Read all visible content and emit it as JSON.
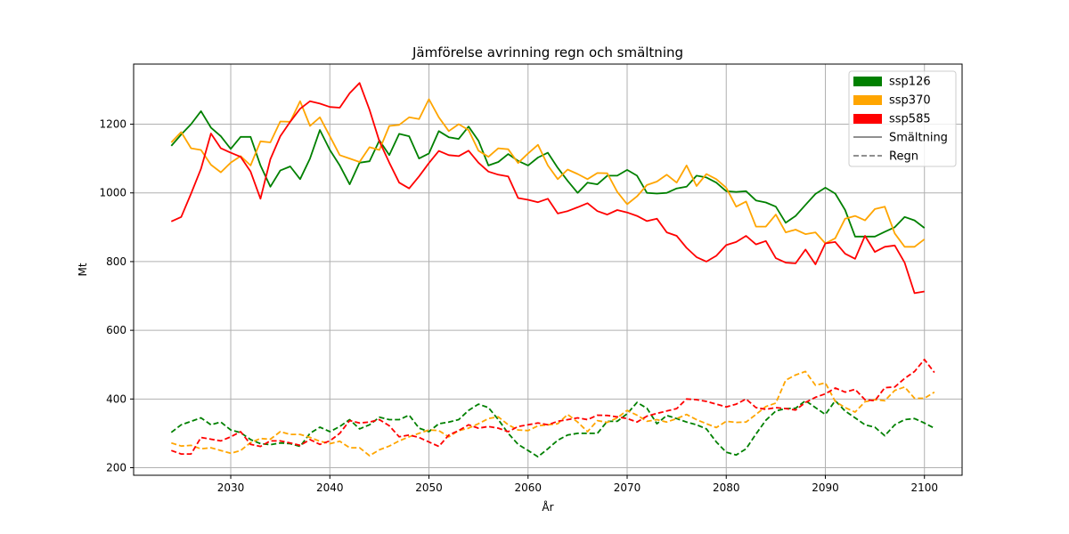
{
  "chart_data": {
    "type": "line",
    "title": "Jämförelse avrinning regn och smältning",
    "xlabel": "År",
    "ylabel": "Mt",
    "xlim": [
      2020.2,
      2103.8
    ],
    "ylim": [
      178,
      1375
    ],
    "xticks": [
      2030,
      2040,
      2050,
      2060,
      2070,
      2080,
      2090,
      2100
    ],
    "yticks": [
      200,
      400,
      600,
      800,
      1000,
      1200
    ],
    "grid": true,
    "legend_placement": "top-right",
    "legend": [
      {
        "label": "ssp126",
        "kind": "patch",
        "color": "#008000"
      },
      {
        "label": "ssp370",
        "kind": "patch",
        "color": "#FFA500"
      },
      {
        "label": "ssp585",
        "kind": "patch",
        "color": "#FF0000"
      },
      {
        "label": "Smältning",
        "kind": "solid",
        "color": "#808080"
      },
      {
        "label": "Regn",
        "kind": "dashed",
        "color": "#808080"
      }
    ],
    "x_start": 2024,
    "series": [
      {
        "scenario": "ssp126",
        "kind": "Smältning",
        "color": "#008000",
        "dashed": false,
        "values": [
          1137,
          1170,
          1200,
          1238,
          1190,
          1165,
          1128,
          1163,
          1163,
          1080,
          1018,
          1065,
          1077,
          1040,
          1100,
          1183,
          1125,
          1080,
          1025,
          1088,
          1092,
          1153,
          1110,
          1172,
          1165,
          1100,
          1115,
          1180,
          1162,
          1157,
          1193,
          1152,
          1080,
          1090,
          1113,
          1093,
          1080,
          1103,
          1117,
          1073,
          1035,
          1000,
          1030,
          1025,
          1050,
          1050,
          1067,
          1050,
          1000,
          998,
          1000,
          1013,
          1018,
          1050,
          1045,
          1030,
          1005,
          1003,
          1005,
          978,
          972,
          960,
          913,
          933,
          965,
          997,
          1015,
          998,
          950,
          873,
          873,
          873,
          887,
          900,
          930,
          920,
          898
        ]
      },
      {
        "scenario": "ssp370",
        "kind": "Smältning",
        "color": "#FFA500",
        "dashed": false,
        "values": [
          1147,
          1177,
          1130,
          1125,
          1082,
          1060,
          1088,
          1107,
          1080,
          1150,
          1147,
          1208,
          1207,
          1267,
          1195,
          1220,
          1165,
          1110,
          1100,
          1090,
          1133,
          1125,
          1195,
          1198,
          1220,
          1215,
          1273,
          1220,
          1180,
          1200,
          1183,
          1123,
          1105,
          1130,
          1127,
          1087,
          1115,
          1140,
          1080,
          1040,
          1068,
          1055,
          1040,
          1058,
          1057,
          1003,
          967,
          990,
          1023,
          1033,
          1053,
          1030,
          1080,
          1020,
          1055,
          1040,
          1015,
          960,
          975,
          902,
          902,
          937,
          885,
          893,
          880,
          885,
          853,
          868,
          925,
          933,
          920,
          953,
          960,
          882,
          843,
          843,
          865
        ]
      },
      {
        "scenario": "ssp585",
        "kind": "Smältning",
        "color": "#FF0000",
        "dashed": false,
        "values": [
          917,
          930,
          998,
          1070,
          1173,
          1130,
          1117,
          1105,
          1062,
          983,
          1098,
          1165,
          1207,
          1245,
          1267,
          1260,
          1250,
          1248,
          1290,
          1320,
          1242,
          1150,
          1088,
          1030,
          1013,
          1048,
          1087,
          1122,
          1110,
          1107,
          1123,
          1088,
          1062,
          1053,
          1048,
          985,
          980,
          973,
          983,
          940,
          947,
          958,
          970,
          947,
          937,
          950,
          943,
          933,
          918,
          925,
          885,
          875,
          840,
          813,
          800,
          817,
          848,
          857,
          875,
          850,
          860,
          810,
          797,
          795,
          835,
          792,
          853,
          857,
          823,
          808,
          875,
          828,
          843,
          847,
          797,
          708,
          713
        ]
      },
      {
        "scenario": "ssp126",
        "kind": "Regn",
        "color": "#008000",
        "dashed": true,
        "values": [
          303,
          325,
          335,
          345,
          325,
          333,
          310,
          302,
          282,
          270,
          267,
          272,
          270,
          262,
          300,
          318,
          305,
          320,
          340,
          313,
          325,
          347,
          340,
          340,
          353,
          315,
          305,
          328,
          333,
          340,
          367,
          385,
          375,
          340,
          300,
          268,
          250,
          232,
          255,
          280,
          295,
          300,
          300,
          300,
          335,
          335,
          357,
          390,
          373,
          328,
          352,
          343,
          333,
          325,
          313,
          275,
          245,
          237,
          255,
          298,
          338,
          365,
          372,
          373,
          395,
          375,
          355,
          395,
          365,
          345,
          325,
          318,
          293,
          325,
          340,
          343,
          330,
          315
        ]
      },
      {
        "scenario": "ssp370",
        "kind": "Regn",
        "color": "#FFA500",
        "dashed": true,
        "values": [
          272,
          263,
          265,
          255,
          258,
          250,
          242,
          250,
          273,
          285,
          283,
          305,
          297,
          297,
          288,
          277,
          270,
          277,
          258,
          258,
          235,
          252,
          263,
          278,
          290,
          300,
          310,
          308,
          290,
          308,
          315,
          328,
          343,
          348,
          325,
          310,
          308,
          322,
          325,
          328,
          355,
          333,
          305,
          337,
          332,
          345,
          367,
          353,
          335,
          340,
          333,
          343,
          355,
          340,
          328,
          317,
          335,
          332,
          333,
          355,
          378,
          388,
          455,
          470,
          480,
          440,
          447,
          393,
          375,
          362,
          392,
          398,
          395,
          425,
          435,
          402,
          402,
          420
        ]
      },
      {
        "scenario": "ssp585",
        "kind": "Regn",
        "color": "#FF0000",
        "dashed": true,
        "values": [
          250,
          240,
          240,
          288,
          283,
          278,
          290,
          305,
          268,
          262,
          278,
          278,
          272,
          265,
          282,
          268,
          278,
          300,
          337,
          330,
          333,
          340,
          322,
          290,
          295,
          288,
          275,
          262,
          295,
          308,
          325,
          315,
          320,
          315,
          305,
          320,
          325,
          330,
          325,
          335,
          340,
          345,
          340,
          353,
          352,
          348,
          343,
          333,
          350,
          358,
          365,
          372,
          400,
          398,
          393,
          385,
          377,
          385,
          400,
          375,
          370,
          375,
          372,
          368,
          390,
          405,
          415,
          432,
          420,
          428,
          398,
          395,
          433,
          435,
          460,
          480,
          515,
          477
        ]
      }
    ]
  }
}
